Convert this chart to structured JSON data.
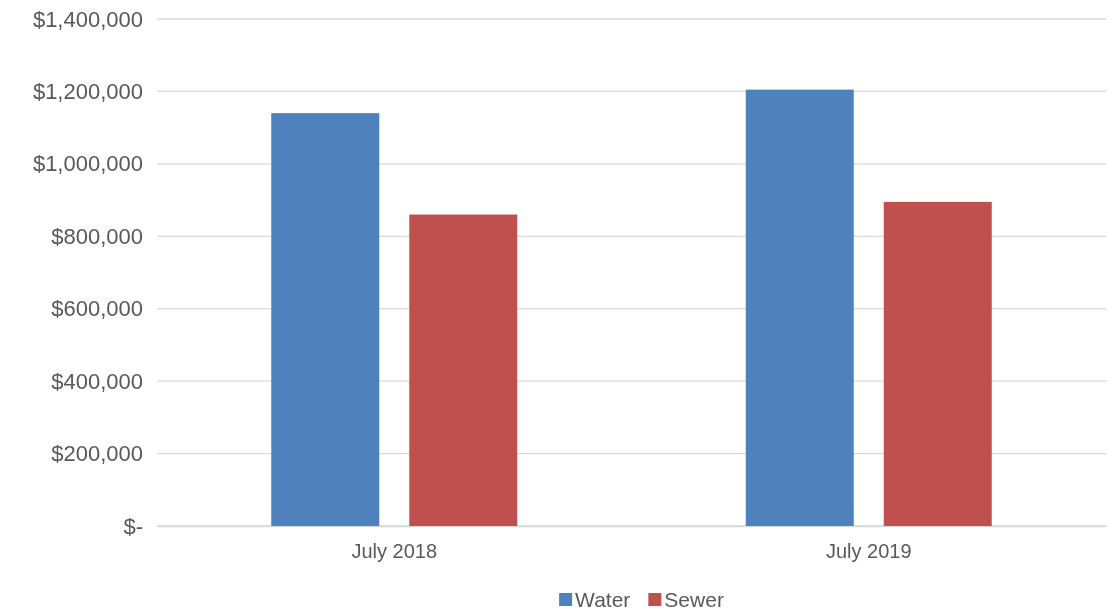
{
  "chart_data": {
    "type": "bar",
    "categories": [
      "July 2018",
      "July 2019"
    ],
    "series": [
      {
        "name": "Water",
        "color": "#4f81bd",
        "values": [
          1140000,
          1205000
        ]
      },
      {
        "name": "Sewer",
        "color": "#c0504d",
        "values": [
          860000,
          895000
        ]
      }
    ],
    "ylim": [
      0,
      1400000
    ],
    "yticks": [
      {
        "value": 0,
        "label": "$-"
      },
      {
        "value": 200000,
        "label": "$200,000"
      },
      {
        "value": 400000,
        "label": "$400,000"
      },
      {
        "value": 600000,
        "label": "$600,000"
      },
      {
        "value": 800000,
        "label": "$800,000"
      },
      {
        "value": 1000000,
        "label": "$1,000,000"
      },
      {
        "value": 1200000,
        "label": "$1,200,000"
      },
      {
        "value": 1400000,
        "label": "$1,400,000"
      }
    ],
    "grid": "y",
    "legend": "bottom"
  }
}
